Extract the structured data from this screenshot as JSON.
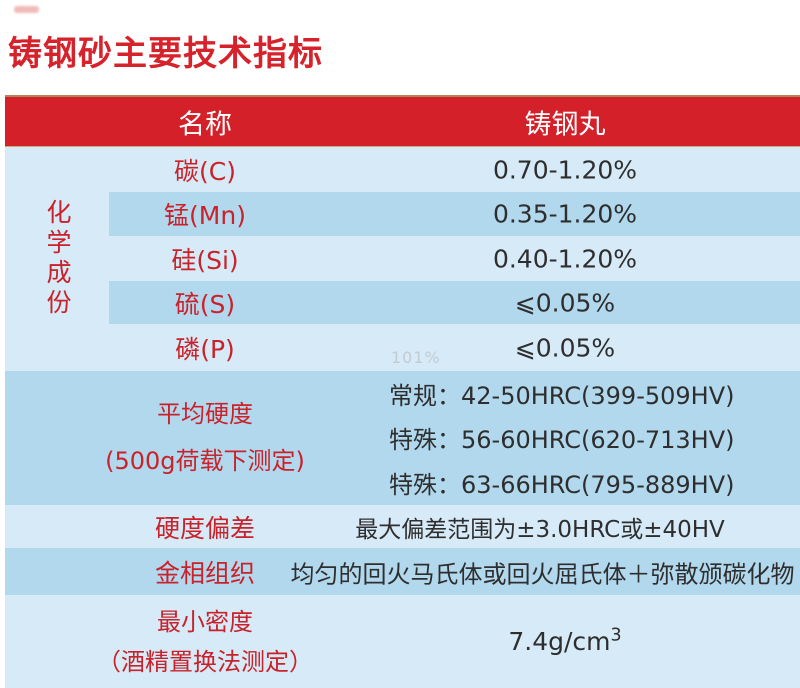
{
  "title": "铸钢砂主要技术指标",
  "watermark": "101%",
  "colors": {
    "header_red": "#d32029",
    "title_red": "#d6232b",
    "label_red": "#c9222a",
    "row_light_blue": "#d6eaf7",
    "row_dark_blue": "#b2d8ee",
    "value_text": "#2e2e2e",
    "header_text": "#ffffff"
  },
  "table": {
    "header": {
      "name_col": "名称",
      "value_col": "铸钢丸"
    },
    "chemistry": {
      "group_label": "化学成份",
      "rows": [
        {
          "name": "碳(C)",
          "value": "0.70-1.20%"
        },
        {
          "name": "锰(Mn)",
          "value": "0.35-1.20%"
        },
        {
          "name": "硅(Si)",
          "value": "0.40-1.20%"
        },
        {
          "name": "硫(S)",
          "value": "⩽0.05%"
        },
        {
          "name": "磷(P)",
          "value": "⩽0.05%"
        }
      ]
    },
    "hardness": {
      "label_line1": "平均硬度",
      "label_line2": "(500g荷载下测定)",
      "values": [
        "常规：42-50HRC(399-509HV)",
        "特殊：56-60HRC(620-713HV)",
        "特殊：63-66HRC(795-889HV)"
      ]
    },
    "deviation": {
      "label": "硬度偏差",
      "value": "最大偏差范围为±3.0HRC或±40HV"
    },
    "microstructure": {
      "label": "金相组织",
      "value": "均匀的回火马氏体或回火屈氏体＋弥散颁碳化物"
    },
    "density": {
      "label_line1": "最小密度",
      "label_line2": "（酒精置换法测定）",
      "value_base": "7.4g/cm",
      "value_exp": "3"
    }
  }
}
